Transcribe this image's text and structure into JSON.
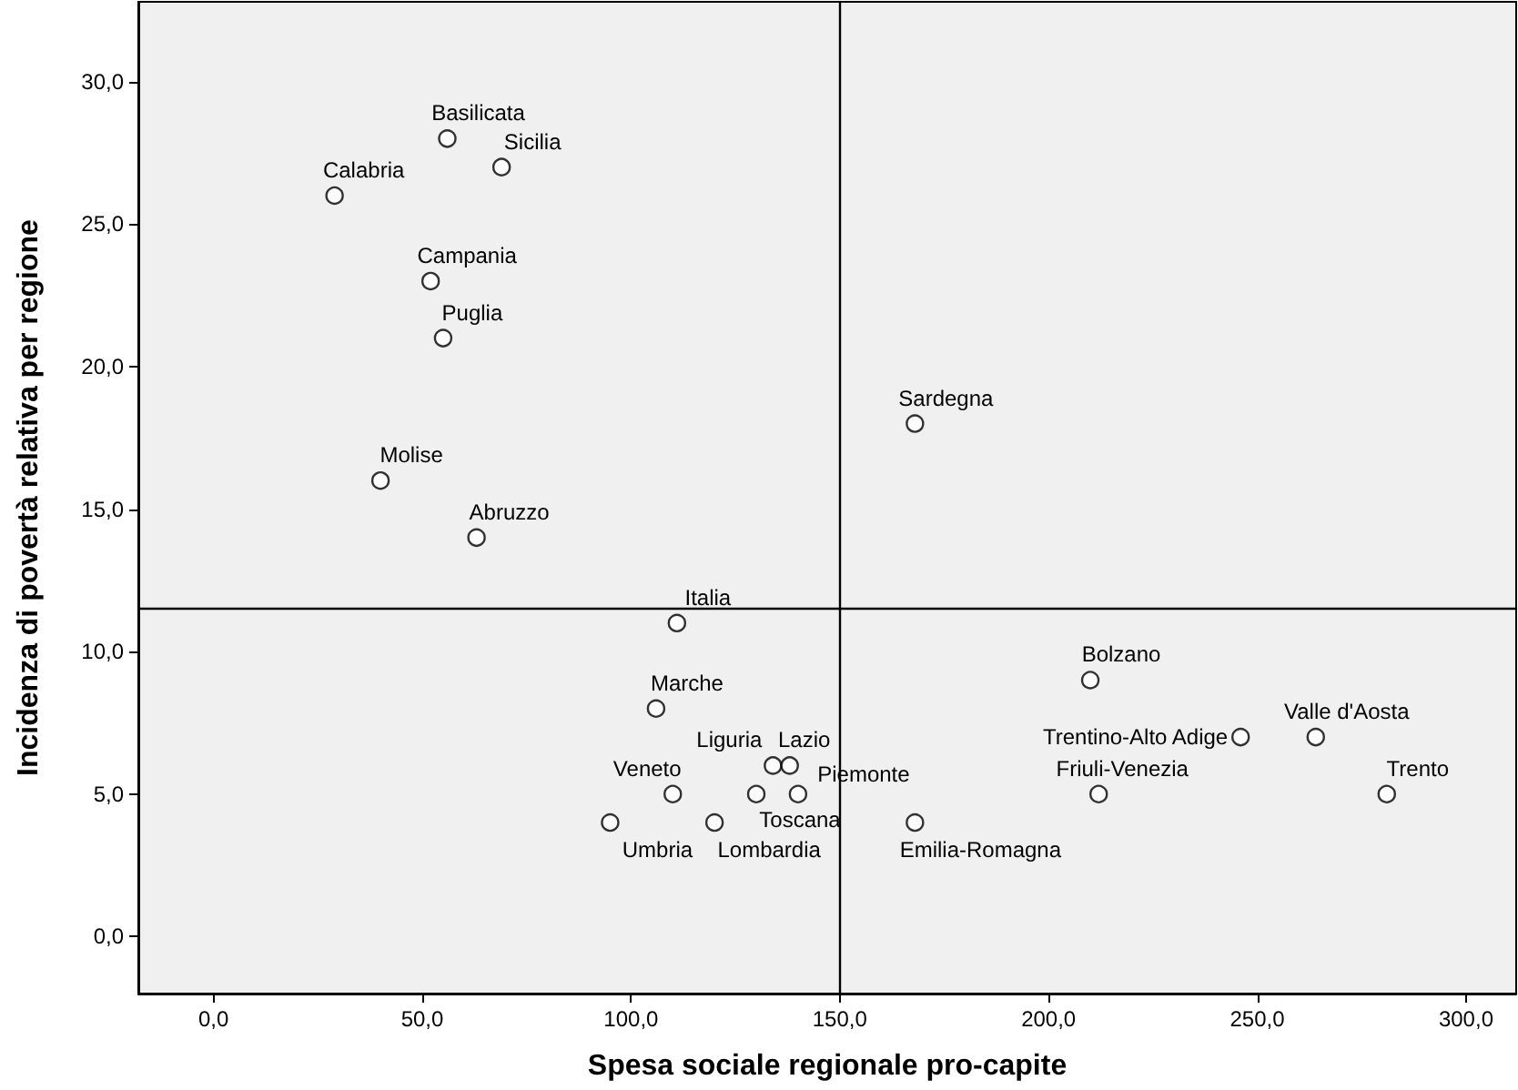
{
  "chart_data": {
    "type": "scatter",
    "xlabel": "Spesa sociale regionale pro-capite",
    "ylabel": "Incidenza di povertà relativa per regione",
    "x": [
      56,
      69,
      29,
      52,
      55,
      168,
      40,
      63,
      111,
      210,
      106,
      246,
      264,
      134,
      138,
      110,
      130,
      140,
      212,
      281,
      95,
      120,
      168
    ],
    "values": [
      28,
      27,
      26,
      23,
      21,
      18,
      16,
      14,
      11,
      9,
      8,
      7,
      7,
      6,
      6,
      5,
      5,
      5,
      5,
      5,
      4,
      4,
      4
    ],
    "color": "#000000",
    "marker": "circle",
    "grid": false,
    "xlim": [
      -18,
      312
    ],
    "xticks": [
      {
        "value": 0,
        "label": "0,0"
      },
      {
        "value": 50,
        "label": "50,0"
      },
      {
        "value": 100,
        "label": "100,0"
      },
      {
        "value": 150,
        "label": "150,0"
      },
      {
        "value": 200,
        "label": "200,0"
      },
      {
        "value": 250,
        "label": "250,0"
      },
      {
        "value": 300,
        "label": "300,0"
      }
    ],
    "ylim": [
      -2,
      32.8
    ],
    "yticks": [
      {
        "value": 0,
        "label": "0,0"
      },
      {
        "value": 5,
        "label": "5,0"
      },
      {
        "value": 10,
        "label": "10,0"
      },
      {
        "value": 15,
        "label": "15,0"
      },
      {
        "value": 20,
        "label": "20,0"
      },
      {
        "value": 25,
        "label": "25,0"
      },
      {
        "value": 30,
        "label": "30,0"
      }
    ],
    "ref_lines": [
      {
        "axis": "x",
        "value": 150
      },
      {
        "axis": "y",
        "value": 11.5
      }
    ],
    "annotations": [
      {
        "text": "Basilicata",
        "x": 56,
        "y": 28
      },
      {
        "text": "Sicilia",
        "x": 69,
        "y": 27
      },
      {
        "text": "Calabria",
        "x": 29,
        "y": 26
      },
      {
        "text": "Campania",
        "x": 52,
        "y": 23
      },
      {
        "text": "Puglia",
        "x": 55,
        "y": 21
      },
      {
        "text": "Sardegna",
        "x": 168,
        "y": 18
      },
      {
        "text": "Molise",
        "x": 40,
        "y": 16
      },
      {
        "text": "Abruzzo",
        "x": 63,
        "y": 14
      },
      {
        "text": "Italia",
        "x": 111,
        "y": 11
      },
      {
        "text": "Bolzano",
        "x": 210,
        "y": 9
      },
      {
        "text": "Marche",
        "x": 106,
        "y": 8
      },
      {
        "text": "Trentino-Alto Adige",
        "x": 246,
        "y": 7
      },
      {
        "text": "Valle d'Aosta",
        "x": 264,
        "y": 7
      },
      {
        "text": "Liguria",
        "x": 134,
        "y": 6
      },
      {
        "text": "Lazio",
        "x": 138,
        "y": 6
      },
      {
        "text": "Veneto",
        "x": 110,
        "y": 5
      },
      {
        "text": "Toscana",
        "x": 130,
        "y": 5
      },
      {
        "text": "Piemonte",
        "x": 140,
        "y": 5
      },
      {
        "text": "Friuli-Venezia",
        "x": 212,
        "y": 5
      },
      {
        "text": "Trento",
        "x": 281,
        "y": 5
      },
      {
        "text": "Umbria",
        "x": 95,
        "y": 4
      },
      {
        "text": "Lombardia",
        "x": 120,
        "y": 4
      },
      {
        "text": "Emilia-Romagna",
        "x": 168,
        "y": 4
      }
    ]
  }
}
